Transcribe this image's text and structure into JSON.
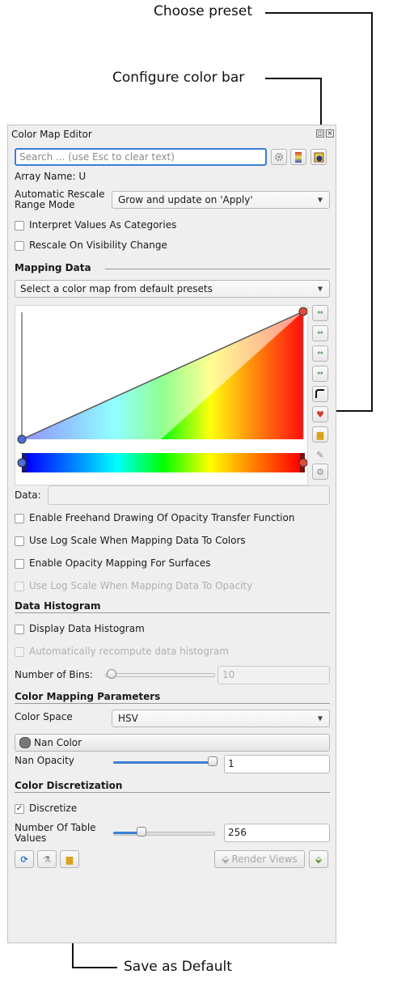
{
  "annotations": {
    "choose_preset": "Choose preset",
    "configure_color_bar": "Configure color bar",
    "save_as_default": "Save as Default"
  },
  "panel": {
    "title": "Color Map Editor",
    "search_placeholder": "Search ... (use Esc to clear text)",
    "array_name": "Array Name: U",
    "auto_rescale_label_1": "Automatic Rescale",
    "auto_rescale_label_2": "Range Mode",
    "auto_rescale_value": "Grow and update on 'Apply'",
    "interpret_categories": "Interpret Values As Categories",
    "rescale_visibility": "Rescale On Visibility Change",
    "mapping_data_heading": "Mapping Data",
    "preset_combo": "Select a color map from default presets",
    "data_label": "Data:",
    "freehand": "Enable Freehand Drawing Of Opacity Transfer Function",
    "log_colors": "Use Log Scale When Mapping Data To Colors",
    "opacity_surfaces": "Enable Opacity Mapping For Surfaces",
    "log_opacity": "Use Log Scale When Mapping Data To Opacity",
    "histogram_heading": "Data Histogram",
    "display_histogram": "Display Data Histogram",
    "auto_recompute": "Automatically recompute data histogram",
    "bins_label": "Number of Bins:",
    "bins_value": "10",
    "color_params_heading": "Color Mapping Parameters",
    "color_space_label": "Color Space",
    "color_space_value": "HSV",
    "nan_color": "Nan Color",
    "nan_opacity_label": "Nan Opacity",
    "nan_opacity_value": "1",
    "discretization_heading": "Color Discretization",
    "discretize": "Discretize",
    "table_values_label_1": "Number Of Table",
    "table_values_label_2": "Values",
    "table_values_value": "256",
    "render_views": "Render Views"
  },
  "states": {
    "discretize_checked": true,
    "discretize_mark": "✓"
  },
  "colors": {
    "accent": "#3c7fd6",
    "ramp_start": "#0000ff",
    "ramp_end": "#ff0000"
  }
}
